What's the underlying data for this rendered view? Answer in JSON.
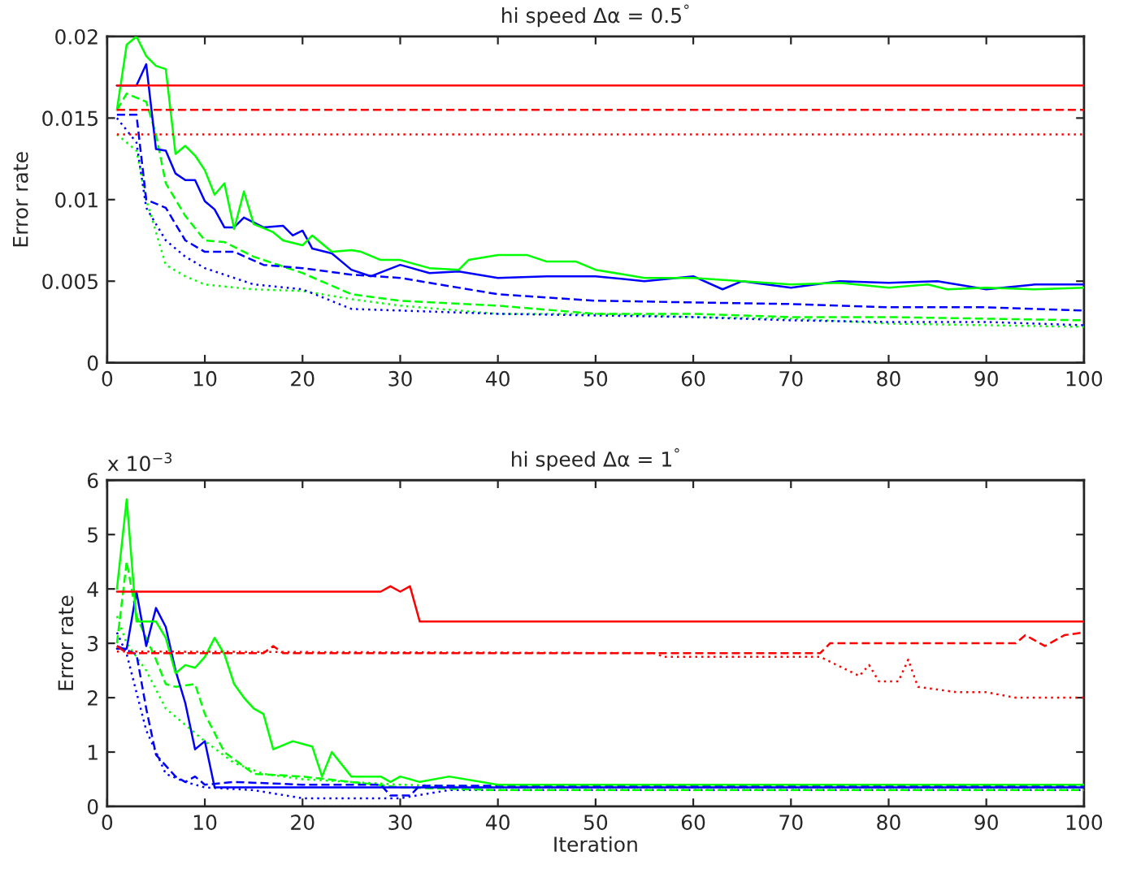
{
  "chart_data": [
    {
      "type": "line",
      "title": "hi speed Δα = 0.5$^{°}$",
      "ylabel": "Error rate",
      "xlim": [
        0,
        100
      ],
      "xticks": [
        0,
        10,
        20,
        30,
        40,
        50,
        60,
        70,
        80,
        90,
        100
      ],
      "ylim": [
        0,
        0.02
      ],
      "yticks": [
        0,
        0.005,
        0.01,
        0.015,
        0.02
      ],
      "grid": false,
      "legend": false,
      "series": [
        {
          "color": "#ff0000",
          "line_style": "solid",
          "x": [
            1,
            100
          ],
          "values": [
            0.017,
            0.017
          ]
        },
        {
          "color": "#ff0000",
          "line_style": "dashed",
          "x": [
            1,
            100
          ],
          "values": [
            0.0155,
            0.0155
          ]
        },
        {
          "color": "#ff0000",
          "line_style": "dotted",
          "x": [
            1,
            100
          ],
          "values": [
            0.014,
            0.014
          ]
        },
        {
          "color": "#00ff00",
          "line_style": "solid",
          "x": [
            1,
            2,
            3,
            4,
            5,
            6,
            7,
            8,
            9,
            10,
            11,
            12,
            13,
            14,
            15,
            17,
            18,
            20,
            21,
            23,
            25,
            26,
            28,
            30,
            33,
            36,
            37,
            40,
            43,
            45,
            48,
            50,
            55,
            60,
            65,
            70,
            75,
            80,
            84,
            86,
            90,
            95,
            100
          ],
          "values": [
            0.0155,
            0.0195,
            0.02,
            0.0188,
            0.0182,
            0.018,
            0.0128,
            0.0133,
            0.0127,
            0.0118,
            0.0103,
            0.011,
            0.0082,
            0.0105,
            0.0085,
            0.008,
            0.0075,
            0.0072,
            0.0078,
            0.0068,
            0.0069,
            0.0068,
            0.0063,
            0.0063,
            0.0058,
            0.0057,
            0.0063,
            0.0066,
            0.0066,
            0.0062,
            0.0062,
            0.0057,
            0.0052,
            0.0052,
            0.005,
            0.0048,
            0.0049,
            0.0046,
            0.0048,
            0.0045,
            0.0046,
            0.0045,
            0.0046
          ]
        },
        {
          "color": "#0000ff",
          "line_style": "solid",
          "x": [
            1,
            3,
            4,
            5,
            6,
            7,
            8,
            9,
            10,
            11,
            12,
            13,
            14,
            16,
            18,
            19,
            20,
            21,
            23,
            25,
            27,
            30,
            33,
            36,
            40,
            45,
            50,
            55,
            60,
            63,
            65,
            70,
            75,
            80,
            85,
            90,
            95,
            100
          ],
          "values": [
            0.017,
            0.017,
            0.0183,
            0.0131,
            0.013,
            0.0116,
            0.0112,
            0.0112,
            0.0099,
            0.0094,
            0.0083,
            0.0083,
            0.0089,
            0.0083,
            0.0084,
            0.0078,
            0.0081,
            0.007,
            0.0067,
            0.0057,
            0.0053,
            0.006,
            0.0055,
            0.0056,
            0.0052,
            0.0053,
            0.0053,
            0.005,
            0.0053,
            0.0045,
            0.005,
            0.0046,
            0.005,
            0.0049,
            0.005,
            0.0045,
            0.0048,
            0.0048
          ]
        },
        {
          "color": "#0000ff",
          "line_style": "dashed",
          "x": [
            1,
            3,
            4,
            6,
            8,
            10,
            13,
            16,
            20,
            25,
            30,
            40,
            50,
            60,
            70,
            80,
            90,
            100
          ],
          "values": [
            0.0152,
            0.0152,
            0.01,
            0.0095,
            0.0075,
            0.0068,
            0.0068,
            0.006,
            0.0058,
            0.0054,
            0.0052,
            0.0042,
            0.0038,
            0.0037,
            0.0036,
            0.0034,
            0.0034,
            0.0032
          ]
        },
        {
          "color": "#00ff00",
          "line_style": "dashed",
          "x": [
            1,
            2,
            4,
            5,
            6,
            8,
            10,
            12,
            15,
            20,
            25,
            30,
            40,
            50,
            60,
            70,
            80,
            90,
            100
          ],
          "values": [
            0.0155,
            0.0165,
            0.016,
            0.014,
            0.011,
            0.009,
            0.0075,
            0.0074,
            0.0065,
            0.0055,
            0.0042,
            0.0038,
            0.0035,
            0.003,
            0.003,
            0.0028,
            0.0028,
            0.0027,
            0.0026
          ]
        },
        {
          "color": "#0000ff",
          "line_style": "dotted",
          "x": [
            1,
            3,
            4,
            6,
            8,
            10,
            15,
            20,
            25,
            30,
            40,
            50,
            60,
            70,
            80,
            90,
            100
          ],
          "values": [
            0.015,
            0.0135,
            0.0095,
            0.0075,
            0.0065,
            0.0058,
            0.0048,
            0.0045,
            0.0033,
            0.0032,
            0.003,
            0.0029,
            0.0028,
            0.0026,
            0.0025,
            0.0025,
            0.0023
          ]
        },
        {
          "color": "#00ff00",
          "line_style": "dotted",
          "x": [
            1,
            3,
            4,
            6,
            8,
            10,
            15,
            20,
            25,
            30,
            40,
            50,
            60,
            70,
            80,
            90,
            100
          ],
          "values": [
            0.014,
            0.013,
            0.01,
            0.006,
            0.0053,
            0.0048,
            0.0045,
            0.0044,
            0.0039,
            0.0035,
            0.003,
            0.003,
            0.0028,
            0.0027,
            0.0024,
            0.0023,
            0.0022
          ]
        }
      ]
    },
    {
      "type": "line",
      "title": "hi speed Δα = 1$^{°}$",
      "ylabel": "Error rate",
      "xlabel": "Iteration",
      "annotations": [
        "x 10$^{−3}$"
      ],
      "xlim": [
        0,
        100
      ],
      "xticks": [
        0,
        10,
        20,
        30,
        40,
        50,
        60,
        70,
        80,
        90,
        100
      ],
      "ylim": [
        0,
        6
      ],
      "yticks": [
        0,
        1,
        2,
        3,
        4,
        5,
        6
      ],
      "grid": false,
      "legend": false,
      "series": [
        {
          "color": "#ff0000",
          "line_style": "solid",
          "x": [
            1,
            28,
            29,
            30,
            31,
            32,
            100
          ],
          "values": [
            3.95,
            3.95,
            4.05,
            3.95,
            4.05,
            3.4,
            3.4
          ]
        },
        {
          "color": "#ff0000",
          "line_style": "dashed",
          "x": [
            1,
            2,
            16,
            17,
            18,
            73,
            74,
            93,
            94,
            96,
            98,
            100
          ],
          "values": [
            2.95,
            2.82,
            2.82,
            2.95,
            2.82,
            2.82,
            3.0,
            3.0,
            3.15,
            2.95,
            3.15,
            3.2
          ]
        },
        {
          "color": "#ff0000",
          "line_style": "dotted",
          "x": [
            1,
            56,
            57,
            73,
            77,
            78,
            79,
            81,
            82,
            83,
            87,
            90,
            93,
            100
          ],
          "values": [
            2.85,
            2.82,
            2.75,
            2.75,
            2.4,
            2.6,
            2.3,
            2.3,
            2.7,
            2.2,
            2.1,
            2.1,
            2.0,
            2.0
          ]
        },
        {
          "color": "#00ff00",
          "line_style": "solid",
          "x": [
            1,
            2,
            3,
            5,
            6,
            7,
            8,
            9,
            10,
            11,
            12,
            13,
            14,
            15,
            16,
            17,
            19,
            21,
            22,
            23,
            25,
            28,
            29,
            30,
            32,
            35,
            40,
            100
          ],
          "values": [
            4.0,
            5.65,
            3.4,
            3.4,
            3.1,
            2.45,
            2.6,
            2.55,
            2.75,
            3.1,
            2.8,
            2.25,
            2.0,
            1.8,
            1.7,
            1.05,
            1.2,
            1.1,
            0.55,
            1.0,
            0.55,
            0.55,
            0.45,
            0.55,
            0.45,
            0.55,
            0.4,
            0.4
          ]
        },
        {
          "color": "#0000ff",
          "line_style": "solid",
          "x": [
            1,
            2,
            3,
            4,
            5,
            6,
            7,
            8,
            9,
            10,
            11,
            100
          ],
          "values": [
            2.9,
            2.9,
            3.95,
            2.95,
            3.65,
            3.3,
            2.5,
            1.9,
            1.05,
            1.2,
            0.35,
            0.35
          ]
        },
        {
          "color": "#0000ff",
          "line_style": "dashed",
          "x": [
            1,
            3,
            4,
            5,
            7,
            8,
            9,
            10,
            13,
            20,
            28,
            29,
            31,
            32,
            100
          ],
          "values": [
            2.95,
            2.8,
            1.8,
            0.95,
            0.55,
            0.45,
            0.55,
            0.4,
            0.45,
            0.4,
            0.4,
            0.2,
            0.2,
            0.38,
            0.38
          ]
        },
        {
          "color": "#00ff00",
          "line_style": "dashed",
          "x": [
            1,
            2,
            3,
            5,
            6,
            7,
            9,
            10,
            12,
            15,
            20,
            25,
            30,
            40,
            100
          ],
          "values": [
            3.0,
            4.5,
            3.5,
            2.7,
            2.25,
            2.2,
            2.25,
            1.7,
            1.0,
            0.6,
            0.55,
            0.45,
            0.35,
            0.3,
            0.3
          ]
        },
        {
          "color": "#0000ff",
          "line_style": "dotted",
          "x": [
            1,
            2,
            4,
            6,
            8,
            10,
            15,
            20,
            30,
            35,
            100
          ],
          "values": [
            3.2,
            2.8,
            1.4,
            0.6,
            0.45,
            0.35,
            0.3,
            0.15,
            0.15,
            0.3,
            0.3
          ]
        },
        {
          "color": "#00ff00",
          "line_style": "dotted",
          "x": [
            1,
            2,
            4,
            6,
            8,
            10,
            13,
            16,
            20,
            30,
            40,
            100
          ],
          "values": [
            3.5,
            3.0,
            2.5,
            1.8,
            1.5,
            1.2,
            0.8,
            0.6,
            0.5,
            0.4,
            0.35,
            0.35
          ]
        }
      ]
    }
  ]
}
